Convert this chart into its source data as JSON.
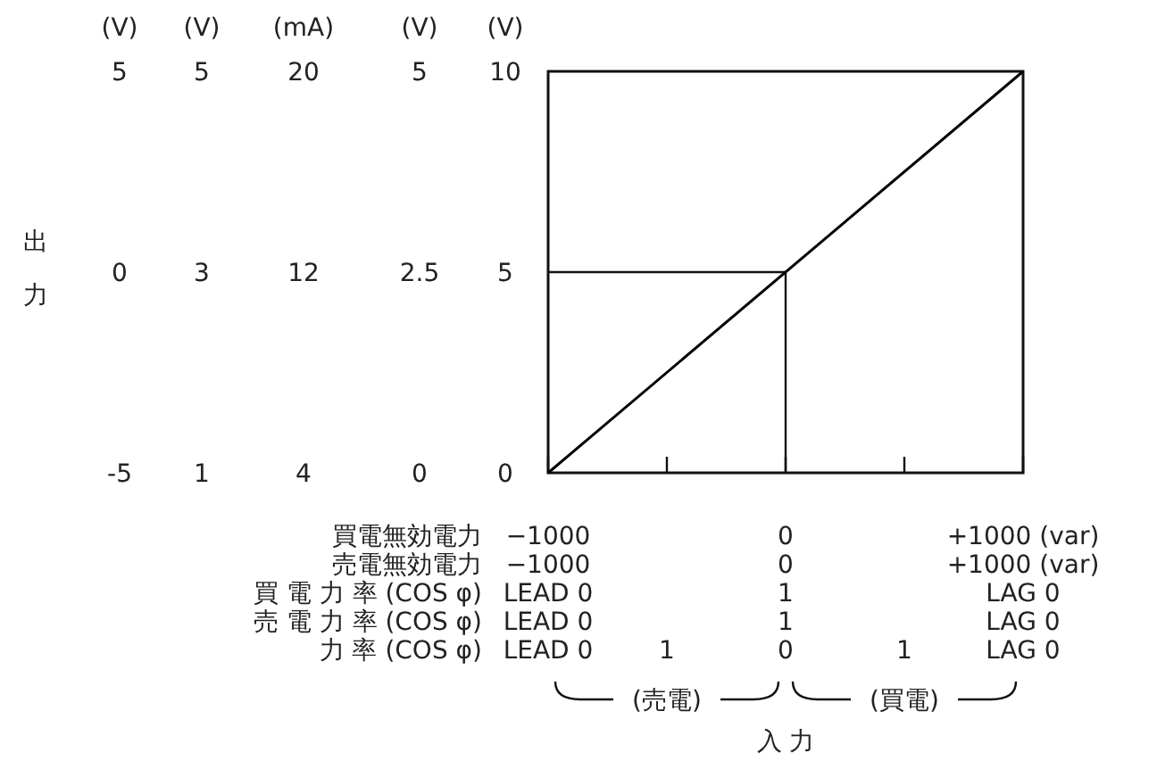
{
  "chart_data": {
    "type": "line",
    "color": "#000000",
    "x": [
      -1000,
      1000
    ],
    "values": [
      0,
      10
    ],
    "xlim": [
      -1000,
      1000
    ],
    "xticks": [
      {
        "value": -1000,
        "label": "−1000"
      },
      {
        "value": -500,
        "label": null
      },
      {
        "value": 0,
        "label": "0"
      },
      {
        "value": 500,
        "label": null
      },
      {
        "value": 1000,
        "label": "+1000 (var)"
      }
    ],
    "ylim": [
      0,
      10
    ],
    "yticks": [
      0,
      5,
      10
    ],
    "ylabel": "(V)",
    "ref_lines": [
      {
        "axis": "x",
        "value": 0
      },
      {
        "axis": "y",
        "value": 5
      }
    ],
    "annotations": [
      "出力",
      "(V)",
      "5",
      "0",
      "-5",
      "(V)",
      "5",
      "3",
      "1",
      "(mA)",
      "20",
      "12",
      "4",
      "(V)",
      "5",
      "2.5",
      "0",
      "買電無効電力",
      "売電無効電力",
      "−1000",
      "0",
      "+1000 (var)",
      "買 電 力 率 (COS φ)",
      "LEAD 0",
      "1",
      "LAG 0",
      "売 電 力 率 (COS φ)",
      "LEAD 0",
      "1",
      "LAG 0",
      "力 率 (COS φ)",
      "LEAD 0",
      "1",
      "0",
      "1",
      "LAG 0",
      "(売電)",
      "(買電)",
      "入 力"
    ]
  }
}
